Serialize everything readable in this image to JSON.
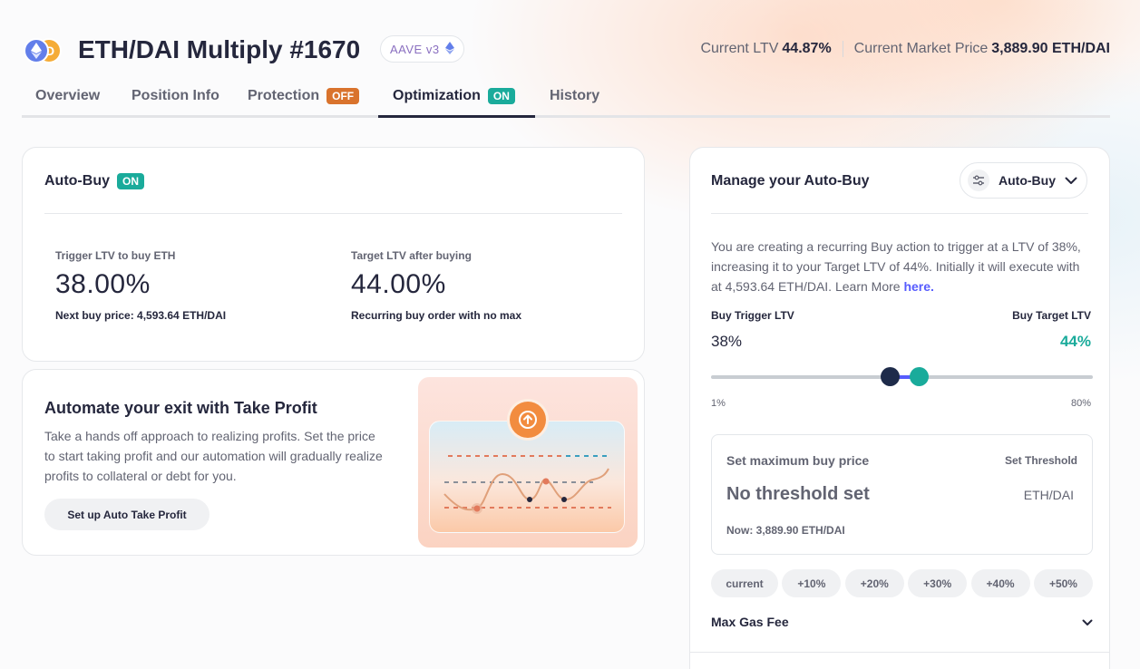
{
  "header": {
    "title": "ETH/DAI Multiply #1670",
    "protocol": "AAVE v3",
    "ltv_label": "Current LTV",
    "ltv_value": "44.87%",
    "price_label": "Current Market Price",
    "price_value": "3,889.90 ETH/DAI"
  },
  "tabs": [
    {
      "label": "Overview"
    },
    {
      "label": "Position Info"
    },
    {
      "label": "Protection",
      "badge": "OFF"
    },
    {
      "label": "Optimization",
      "badge": "ON",
      "active": true
    },
    {
      "label": "History"
    }
  ],
  "autobuy": {
    "title": "Auto-Buy",
    "status": "ON",
    "trigger_label": "Trigger LTV to buy ETH",
    "trigger_value": "38.00%",
    "trigger_sub": "Next buy price: 4,593.64 ETH/DAI",
    "target_label": "Target LTV after buying",
    "target_value": "44.00%",
    "target_sub": "Recurring buy order with no max"
  },
  "take_profit": {
    "title": "Automate your exit with Take Profit",
    "description": "Take a hands off approach to realizing profits. Set the price to start taking profit and our automation will gradually realize profits to collateral or debt for you.",
    "button": "Set up Auto Take Profit"
  },
  "manage": {
    "title": "Manage your Auto-Buy",
    "dropdown": "Auto-Buy",
    "desc_text": "You are creating a recurring Buy action to trigger at a LTV of 38%, increasing it to your Target LTV of 44%. Initially it will execute with at 4,593.64 ETH/DAI. Learn More ",
    "desc_link": "here.",
    "trigger_label": "Buy Trigger LTV",
    "trigger_value": "38%",
    "target_label": "Buy Target LTV",
    "target_value": "44%",
    "range_min": "1%",
    "range_max": "80%",
    "trigger_fraction": 0.468,
    "target_fraction": 0.544,
    "threshold": {
      "label": "Set maximum buy price",
      "link": "Set Threshold",
      "value": "No threshold set",
      "unit": "ETH/DAI",
      "now": "Now: 3,889.90 ETH/DAI"
    },
    "chips": [
      "current",
      "+10%",
      "+20%",
      "+30%",
      "+40%",
      "+50%"
    ],
    "gas_label": "Max Gas Fee"
  },
  "colors": {
    "accent_teal": "#1aab9b",
    "off_orange": "#d9732d",
    "link_purple": "#575cfe",
    "text_dark": "#25273d",
    "text_muted": "#626472"
  }
}
